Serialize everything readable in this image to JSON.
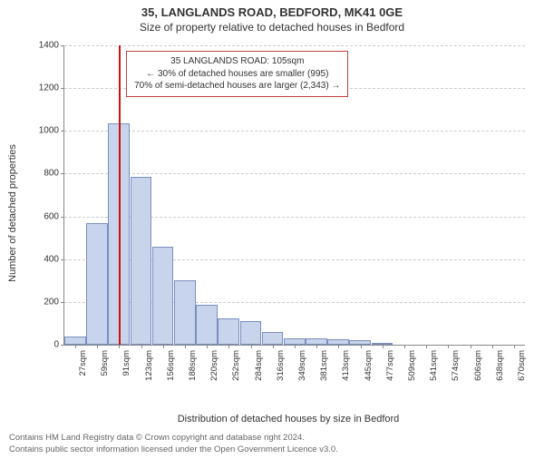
{
  "title_line1": "35, LANGLANDS ROAD, BEDFORD, MK41 0GE",
  "title_line2": "Size of property relative to detached houses in Bedford",
  "ylabel": "Number of detached properties",
  "xlabel": "Distribution of detached houses by size in Bedford",
  "chart": {
    "type": "histogram",
    "ylim_max": 1400,
    "ytick_step": 200,
    "grid_color": "#cccccc",
    "axis_color": "#888888",
    "bar_fill": "#c8d4ec",
    "bar_stroke": "#7a8fc0",
    "x_categories": [
      "27sqm",
      "59sqm",
      "91sqm",
      "123sqm",
      "156sqm",
      "188sqm",
      "220sqm",
      "252sqm",
      "284sqm",
      "316sqm",
      "349sqm",
      "381sqm",
      "413sqm",
      "445sqm",
      "477sqm",
      "509sqm",
      "541sqm",
      "574sqm",
      "606sqm",
      "638sqm",
      "670sqm"
    ],
    "values": [
      40,
      570,
      1035,
      785,
      460,
      300,
      185,
      125,
      110,
      60,
      30,
      30,
      25,
      20,
      10,
      0,
      0,
      0,
      0,
      0,
      0
    ],
    "marker": {
      "value_sqm": 105,
      "x_range_min": 27,
      "x_range_max": 686,
      "color": "#d01010"
    }
  },
  "annotation": {
    "line1": "35 LANGLANDS ROAD: 105sqm",
    "line2": "← 30% of detached houses are smaller (995)",
    "line3": "70% of semi-detached houses are larger (2,343) →",
    "border_color": "#c04040"
  },
  "footer_line1": "Contains HM Land Registry data © Crown copyright and database right 2024.",
  "footer_line2": "Contains public sector information licensed under the Open Government Licence v3.0."
}
